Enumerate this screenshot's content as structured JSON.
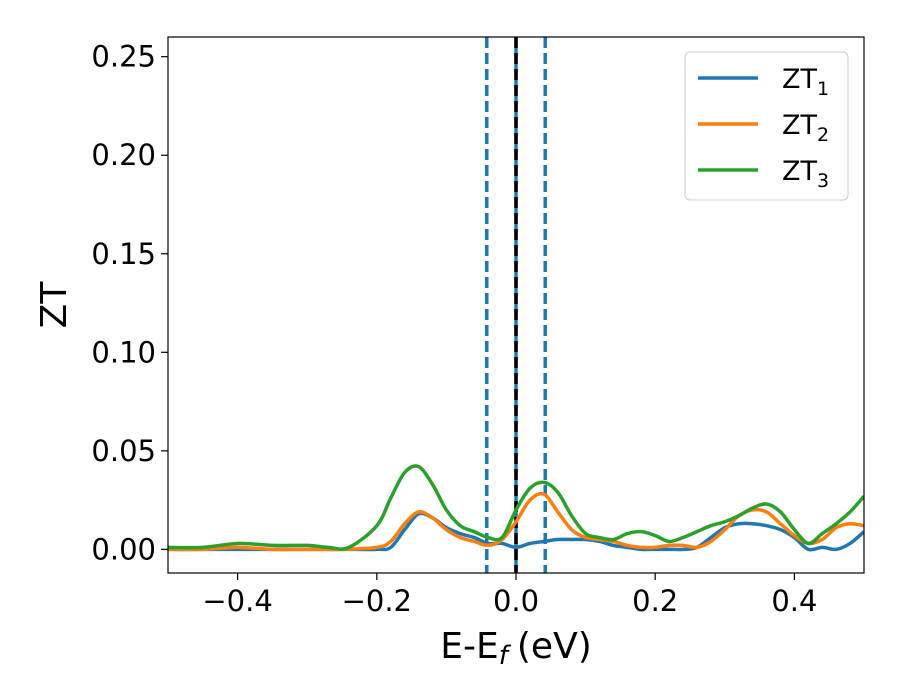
{
  "chart_data": {
    "type": "line",
    "title": "",
    "xlabel": "E-E",
    "xlabel_sub": "f",
    "xlabel_unit": "(eV)",
    "ylabel": "ZT",
    "xlim": [
      -0.5,
      0.5
    ],
    "ylim": [
      -0.012,
      0.26
    ],
    "grid": false,
    "legend_position": "top-right",
    "x_ticks": [
      {
        "value": -0.4,
        "label": "−0.4"
      },
      {
        "value": -0.2,
        "label": "−0.2"
      },
      {
        "value": 0.0,
        "label": "0.0"
      },
      {
        "value": 0.2,
        "label": "0.2"
      },
      {
        "value": 0.4,
        "label": "0.4"
      }
    ],
    "y_ticks": [
      {
        "value": 0.0,
        "label": "0.00"
      },
      {
        "value": 0.05,
        "label": "0.05"
      },
      {
        "value": 0.1,
        "label": "0.10"
      },
      {
        "value": 0.15,
        "label": "0.15"
      },
      {
        "value": 0.2,
        "label": "0.20"
      },
      {
        "value": 0.25,
        "label": "0.25"
      }
    ],
    "vertical_lines": [
      {
        "x": -0.042,
        "style": "dashed",
        "color": "#1f77b4"
      },
      {
        "x": 0.0,
        "style": "solid",
        "color": "#1f77b4"
      },
      {
        "x": 0.0,
        "style": "dashed",
        "color": "#000000"
      },
      {
        "x": 0.042,
        "style": "dashed",
        "color": "#1f77b4"
      }
    ],
    "series": [
      {
        "name": "ZT",
        "sub": "1",
        "color": "#1f77b4",
        "x": [
          -0.5,
          -0.45,
          -0.4,
          -0.35,
          -0.3,
          -0.25,
          -0.2,
          -0.18,
          -0.16,
          -0.14,
          -0.12,
          -0.1,
          -0.08,
          -0.06,
          -0.04,
          -0.02,
          0.0,
          0.02,
          0.04,
          0.06,
          0.08,
          0.1,
          0.12,
          0.14,
          0.16,
          0.18,
          0.2,
          0.22,
          0.24,
          0.26,
          0.28,
          0.3,
          0.32,
          0.34,
          0.36,
          0.38,
          0.4,
          0.42,
          0.44,
          0.46,
          0.48,
          0.5
        ],
        "y": [
          0.0,
          0.0,
          0.0,
          0.0,
          0.0,
          0.0,
          0.0,
          0.001,
          0.01,
          0.018,
          0.016,
          0.011,
          0.008,
          0.006,
          0.003,
          0.003,
          0.001,
          0.003,
          0.004,
          0.005,
          0.005,
          0.005,
          0.004,
          0.002,
          0.001,
          0.0,
          0.0,
          0.0,
          0.0,
          0.001,
          0.006,
          0.011,
          0.013,
          0.013,
          0.012,
          0.01,
          0.006,
          0.0,
          0.001,
          0.0,
          0.003,
          0.009
        ]
      },
      {
        "name": "ZT",
        "sub": "2",
        "color": "#ff7f0e",
        "x": [
          -0.5,
          -0.45,
          -0.4,
          -0.35,
          -0.3,
          -0.25,
          -0.2,
          -0.18,
          -0.16,
          -0.14,
          -0.12,
          -0.1,
          -0.08,
          -0.06,
          -0.04,
          -0.02,
          0.0,
          0.02,
          0.04,
          0.06,
          0.08,
          0.1,
          0.12,
          0.14,
          0.16,
          0.18,
          0.2,
          0.22,
          0.24,
          0.26,
          0.28,
          0.3,
          0.32,
          0.34,
          0.36,
          0.38,
          0.4,
          0.42,
          0.44,
          0.46,
          0.48,
          0.5
        ],
        "y": [
          0.0,
          0.0,
          0.001,
          0.0,
          0.0,
          0.0,
          0.001,
          0.004,
          0.013,
          0.019,
          0.016,
          0.01,
          0.006,
          0.004,
          0.002,
          0.005,
          0.014,
          0.025,
          0.028,
          0.019,
          0.01,
          0.006,
          0.005,
          0.004,
          0.002,
          0.001,
          0.001,
          0.002,
          0.002,
          0.001,
          0.004,
          0.01,
          0.017,
          0.02,
          0.019,
          0.013,
          0.007,
          0.003,
          0.005,
          0.011,
          0.013,
          0.012
        ]
      },
      {
        "name": "ZT",
        "sub": "3",
        "color": "#2ca02c",
        "x": [
          -0.5,
          -0.45,
          -0.4,
          -0.35,
          -0.3,
          -0.27,
          -0.24,
          -0.2,
          -0.18,
          -0.16,
          -0.14,
          -0.12,
          -0.1,
          -0.08,
          -0.06,
          -0.04,
          -0.02,
          0.0,
          0.02,
          0.04,
          0.06,
          0.08,
          0.1,
          0.12,
          0.14,
          0.16,
          0.18,
          0.2,
          0.22,
          0.24,
          0.26,
          0.28,
          0.3,
          0.32,
          0.34,
          0.36,
          0.38,
          0.4,
          0.42,
          0.44,
          0.46,
          0.48,
          0.5
        ],
        "y": [
          0.001,
          0.001,
          0.003,
          0.002,
          0.002,
          0.001,
          0.001,
          0.012,
          0.026,
          0.039,
          0.042,
          0.033,
          0.02,
          0.012,
          0.009,
          0.006,
          0.006,
          0.02,
          0.031,
          0.034,
          0.029,
          0.017,
          0.008,
          0.006,
          0.005,
          0.008,
          0.009,
          0.007,
          0.004,
          0.006,
          0.009,
          0.012,
          0.014,
          0.017,
          0.021,
          0.023,
          0.019,
          0.01,
          0.003,
          0.008,
          0.013,
          0.019,
          0.027
        ]
      }
    ]
  }
}
